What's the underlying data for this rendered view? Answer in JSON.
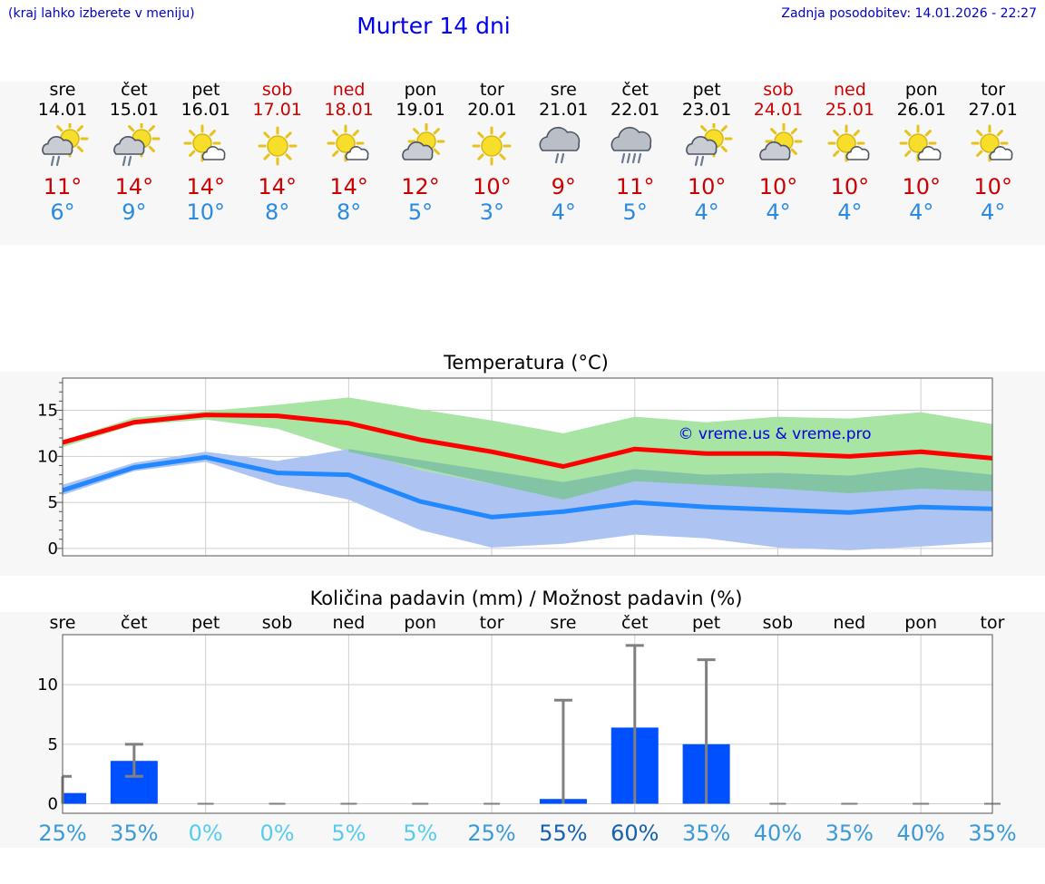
{
  "header": {
    "location_note": "(kraj lahko izberete v meniju)",
    "title": "Murter 14 dni",
    "last_update": "Zadnja posodobitev: 14.01.2026 - 22:27"
  },
  "colors": {
    "max_temp": "#cc0000",
    "min_temp": "#2a8ae0",
    "max_line": "#ff0000",
    "min_line": "#2288ff",
    "max_band": "#a8e4a4",
    "min_band": "#adc3f2",
    "overlap_band": "#82c4a4",
    "bar": "#0050ff",
    "whisker": "#808080"
  },
  "days": [
    {
      "name": "sre",
      "date": "14.01",
      "weekend": false,
      "icon": "sun-cloud-rain-icon",
      "tmax": "11°",
      "tmin": "6°"
    },
    {
      "name": "čet",
      "date": "15.01",
      "weekend": false,
      "icon": "sun-cloud-rain-icon",
      "tmax": "14°",
      "tmin": "9°"
    },
    {
      "name": "pet",
      "date": "16.01",
      "weekend": false,
      "icon": "sun-small-cloud-icon",
      "tmax": "14°",
      "tmin": "10°"
    },
    {
      "name": "sob",
      "date": "17.01",
      "weekend": true,
      "icon": "sun-icon",
      "tmax": "14°",
      "tmin": "8°"
    },
    {
      "name": "ned",
      "date": "18.01",
      "weekend": true,
      "icon": "sun-small-cloud-icon",
      "tmax": "14°",
      "tmin": "8°"
    },
    {
      "name": "pon",
      "date": "19.01",
      "weekend": false,
      "icon": "sun-cloud-icon",
      "tmax": "12°",
      "tmin": "5°"
    },
    {
      "name": "tor",
      "date": "20.01",
      "weekend": false,
      "icon": "sun-icon",
      "tmax": "10°",
      "tmin": "3°"
    },
    {
      "name": "sre",
      "date": "21.01",
      "weekend": false,
      "icon": "cloud-rain-icon",
      "tmax": "9°",
      "tmin": "4°"
    },
    {
      "name": "čet",
      "date": "22.01",
      "weekend": false,
      "icon": "cloud-heavy-rain-icon",
      "tmax": "11°",
      "tmin": "5°"
    },
    {
      "name": "pet",
      "date": "23.01",
      "weekend": false,
      "icon": "sun-cloud-rain-icon",
      "tmax": "10°",
      "tmin": "4°"
    },
    {
      "name": "sob",
      "date": "24.01",
      "weekend": true,
      "icon": "sun-cloud-icon",
      "tmax": "10°",
      "tmin": "4°"
    },
    {
      "name": "ned",
      "date": "25.01",
      "weekend": true,
      "icon": "sun-small-cloud-icon",
      "tmax": "10°",
      "tmin": "4°"
    },
    {
      "name": "pon",
      "date": "26.01",
      "weekend": false,
      "icon": "sun-small-cloud-icon",
      "tmax": "10°",
      "tmin": "4°"
    },
    {
      "name": "tor",
      "date": "27.01",
      "weekend": false,
      "icon": "sun-small-cloud-icon",
      "tmax": "10°",
      "tmin": "4°"
    }
  ],
  "chart_data": [
    {
      "type": "line",
      "title": "Temperatura (°C)",
      "watermark": "© vreme.us & vreme.pro",
      "xlabel": "",
      "ylabel": "",
      "ylim": [
        -0.8,
        18.5
      ],
      "yticks": [
        "0",
        "5",
        "10",
        "15"
      ],
      "x": [
        0,
        1,
        2,
        3,
        4,
        5,
        6,
        7,
        8,
        9,
        10,
        11,
        12,
        13
      ],
      "series": [
        {
          "name": "max",
          "values": [
            11.5,
            13.7,
            14.5,
            14.4,
            13.6,
            11.8,
            10.5,
            8.9,
            10.8,
            10.3,
            10.3,
            10.0,
            10.5,
            9.8
          ],
          "band_low": [
            11.0,
            13.4,
            14.0,
            13.0,
            10.5,
            8.5,
            7.0,
            5.3,
            7.3,
            6.9,
            6.5,
            6.0,
            6.5,
            6.2
          ],
          "band_high": [
            11.7,
            14.2,
            14.9,
            15.6,
            16.4,
            15.1,
            13.9,
            12.5,
            14.3,
            13.7,
            14.3,
            14.1,
            14.8,
            13.5
          ]
        },
        {
          "name": "min",
          "values": [
            6.3,
            8.8,
            9.9,
            8.2,
            8.0,
            5.1,
            3.4,
            4.0,
            5.0,
            4.5,
            4.2,
            3.9,
            4.5,
            4.3
          ],
          "band_low": [
            5.8,
            8.4,
            9.4,
            6.9,
            5.3,
            2.0,
            0.1,
            0.5,
            1.5,
            1.1,
            0.1,
            -0.2,
            0.2,
            0.7
          ],
          "band_high": [
            6.9,
            9.3,
            10.5,
            9.5,
            10.8,
            8.5,
            7.0,
            7.2,
            8.6,
            8.0,
            8.2,
            7.9,
            8.8,
            8.0
          ]
        }
      ]
    },
    {
      "type": "bar",
      "title": "Količina padavin (mm) / Možnost padavin (%)",
      "categories": [
        "sre",
        "čet",
        "pet",
        "sob",
        "ned",
        "pon",
        "tor",
        "sre",
        "čet",
        "pet",
        "sob",
        "ned",
        "pon",
        "tor"
      ],
      "ylim": [
        -0.8,
        14.2
      ],
      "yticks": [
        "0",
        "5",
        "10"
      ],
      "values": [
        0.9,
        3.6,
        0,
        0,
        0,
        0,
        0,
        0.4,
        6.4,
        5.0,
        0,
        0,
        0,
        0
      ],
      "whisker_low": [
        0,
        2.3,
        0,
        0,
        0,
        0,
        0,
        0,
        0,
        0,
        0,
        0,
        0,
        0
      ],
      "whisker_high": [
        2.3,
        5.0,
        0,
        0,
        0,
        0,
        0,
        8.7,
        13.3,
        12.1,
        0,
        0,
        0,
        0
      ],
      "probability": [
        "25%",
        "35%",
        "0%",
        "0%",
        "5%",
        "5%",
        "25%",
        "55%",
        "60%",
        "35%",
        "40%",
        "35%",
        "40%",
        "35%"
      ],
      "probability_colors": [
        "#3a9ad8",
        "#3a9ad8",
        "#55ccee",
        "#55ccee",
        "#55ccee",
        "#55ccee",
        "#3a9ad8",
        "#1560b0",
        "#1560b0",
        "#3a9ad8",
        "#3a9ad8",
        "#3a9ad8",
        "#3a9ad8",
        "#3a9ad8"
      ]
    }
  ]
}
